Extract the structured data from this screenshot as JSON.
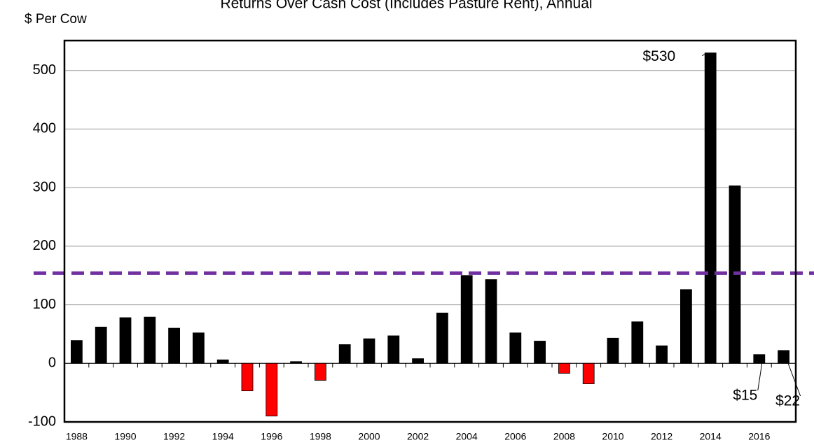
{
  "chart_data": {
    "type": "bar",
    "title": "Returns Over Cash Cost (Includes Pasture Rent), Annual",
    "y_label": "$ Per Cow",
    "categories": [
      "1988",
      null,
      "1990",
      null,
      "1992",
      null,
      "1994",
      null,
      "1996",
      null,
      "1998",
      null,
      "2000",
      null,
      "2002",
      null,
      "2004",
      null,
      "2006",
      null,
      "2008",
      null,
      "2010",
      null,
      "2012",
      null,
      "2014",
      null,
      "2016",
      null
    ],
    "values": [
      39,
      62,
      78,
      79,
      60,
      52,
      6,
      -47,
      -90,
      3,
      -29,
      32,
      42,
      47,
      8,
      86,
      150,
      143,
      52,
      38,
      -17,
      -35,
      43,
      71,
      30,
      126,
      530,
      303,
      15,
      22
    ],
    "value_labels": [
      null,
      null,
      null,
      null,
      null,
      null,
      null,
      null,
      null,
      null,
      null,
      null,
      null,
      null,
      null,
      null,
      null,
      null,
      null,
      null,
      null,
      null,
      null,
      null,
      null,
      null,
      "$530",
      null,
      "$15",
      "$22"
    ],
    "color": "#000000",
    "negative_color": "#ff0000",
    "reference_line": {
      "value": 154,
      "color": "#7030a0"
    },
    "ylim": [
      -100,
      551
    ],
    "yticks": [
      -100,
      0,
      100,
      200,
      300,
      400,
      500
    ],
    "grid": true
  }
}
